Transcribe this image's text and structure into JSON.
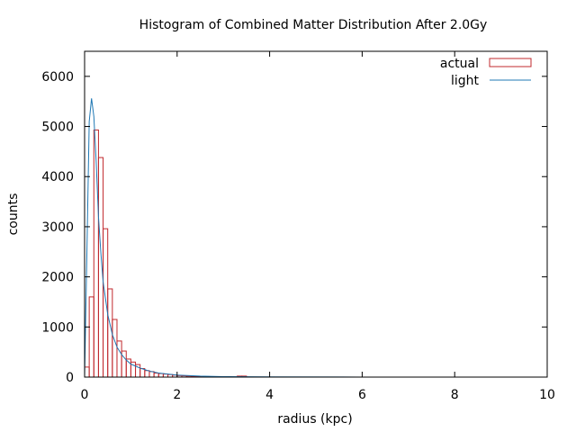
{
  "chart_data": {
    "type": "bar",
    "title": "Histogram of Combined Matter Distribution After 2.0Gy",
    "xlabel": "radius (kpc)",
    "ylabel": "counts",
    "xlim": [
      0,
      10
    ],
    "ylim": [
      0,
      6500
    ],
    "xticks": [
      0,
      2,
      4,
      6,
      8,
      10
    ],
    "yticks": [
      0,
      1000,
      2000,
      3000,
      4000,
      5000,
      6000
    ],
    "grid": false,
    "legend_position": "top-right",
    "bin_width": 0.1,
    "series": [
      {
        "name": "actual",
        "style": "histogram-outline",
        "color": "#c0282d",
        "x": [
          0.0,
          0.1,
          0.2,
          0.3,
          0.4,
          0.5,
          0.6,
          0.7,
          0.8,
          0.9,
          1.0,
          1.1,
          1.2,
          1.3,
          1.4,
          1.5,
          1.6,
          1.7,
          1.8,
          1.9,
          2.0,
          2.1,
          2.2,
          2.3,
          2.4,
          2.5,
          2.6,
          2.7,
          2.8,
          2.9,
          3.0,
          3.3,
          3.4
        ],
        "values": [
          200,
          1600,
          4930,
          4380,
          2960,
          1760,
          1150,
          720,
          520,
          360,
          300,
          250,
          170,
          130,
          110,
          80,
          70,
          60,
          50,
          40,
          30,
          25,
          20,
          15,
          12,
          15,
          10,
          8,
          6,
          5,
          4,
          20,
          20
        ]
      },
      {
        "name": "light",
        "style": "line",
        "color": "#1f78b4",
        "x": [
          0.0,
          0.05,
          0.1,
          0.15,
          0.2,
          0.25,
          0.3,
          0.35,
          0.4,
          0.5,
          0.6,
          0.7,
          0.8,
          0.9,
          1.0,
          1.2,
          1.4,
          1.6,
          1.8,
          2.0,
          2.5,
          3.0,
          4.0,
          6.0,
          8.0,
          10.0
        ],
        "values": [
          0,
          2500,
          5100,
          5560,
          5200,
          4300,
          3200,
          2500,
          1900,
          1250,
          850,
          600,
          450,
          340,
          260,
          180,
          120,
          80,
          60,
          40,
          20,
          10,
          4,
          1,
          0,
          0
        ]
      }
    ]
  }
}
